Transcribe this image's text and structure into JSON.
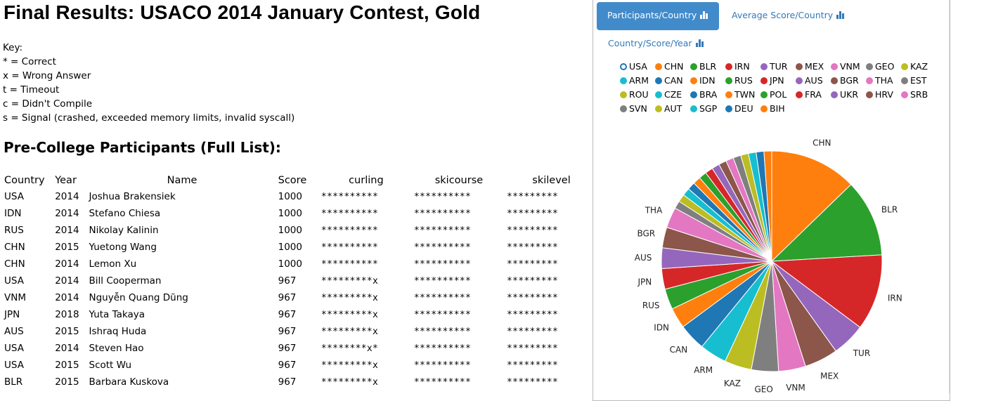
{
  "page_title": "Final Results: USACO 2014 January Contest, Gold",
  "key": {
    "heading": "Key:",
    "items": [
      "* = Correct",
      "x = Wrong Answer",
      "t = Timeout",
      "c = Didn't Compile",
      "s = Signal (crashed, exceeded memory limits, invalid syscall)"
    ]
  },
  "section_heading": "Pre-College Participants (Full List):",
  "table": {
    "headers": [
      "Country",
      "Year",
      "Name",
      "Score",
      "curling",
      "skicourse",
      "skilevel"
    ],
    "rows": [
      [
        "USA",
        "2014",
        "Joshua Brakensiek",
        "1000",
        "**********",
        "**********",
        "*********"
      ],
      [
        "IDN",
        "2014",
        "Stefano Chiesa",
        "1000",
        "**********",
        "**********",
        "*********"
      ],
      [
        "RUS",
        "2014",
        "Nikolay Kalinin",
        "1000",
        "**********",
        "**********",
        "*********"
      ],
      [
        "CHN",
        "2015",
        "Yuetong Wang",
        "1000",
        "**********",
        "**********",
        "*********"
      ],
      [
        "CHN",
        "2014",
        "Lemon Xu",
        "1000",
        "**********",
        "**********",
        "*********"
      ],
      [
        "USA",
        "2014",
        "Bill Cooperman",
        "967",
        "*********x",
        "**********",
        "*********"
      ],
      [
        "VNM",
        "2014",
        "Nguyễn Quang Dũng",
        "967",
        "*********x",
        "**********",
        "*********"
      ],
      [
        "JPN",
        "2018",
        "Yuta Takaya",
        "967",
        "*********x",
        "**********",
        "*********"
      ],
      [
        "AUS",
        "2015",
        "Ishraq Huda",
        "967",
        "*********x",
        "**********",
        "*********"
      ],
      [
        "USA",
        "2014",
        "Steven Hao",
        "967",
        "********x*",
        "**********",
        "*********"
      ],
      [
        "USA",
        "2015",
        "Scott Wu",
        "967",
        "*********x",
        "**********",
        "*********"
      ],
      [
        "BLR",
        "2015",
        "Barbara Kuskova",
        "967",
        "*********x",
        "**********",
        "*********"
      ]
    ]
  },
  "panel": {
    "tabs": [
      {
        "label": "Participants/Country",
        "active": true,
        "icon": "bar-chart-icon"
      },
      {
        "label": "Average Score/Country",
        "active": false,
        "icon": "bar-chart-icon"
      },
      {
        "label": "Country/Score/Year",
        "active": false,
        "icon": "bar-chart-icon"
      }
    ],
    "colors": {
      "active_tab_bg": "#428bca",
      "link": "#337ab7"
    }
  },
  "chart_data": {
    "type": "pie",
    "legend": [
      {
        "name": "USA",
        "color": "#1f77b4",
        "hollow": true
      },
      {
        "name": "CHN",
        "color": "#ff7f0e"
      },
      {
        "name": "BLR",
        "color": "#2ca02c"
      },
      {
        "name": "IRN",
        "color": "#d62728"
      },
      {
        "name": "TUR",
        "color": "#9467bd"
      },
      {
        "name": "MEX",
        "color": "#8c564b"
      },
      {
        "name": "VNM",
        "color": "#e377c2"
      },
      {
        "name": "GEO",
        "color": "#7f7f7f"
      },
      {
        "name": "KAZ",
        "color": "#bcbd22"
      },
      {
        "name": "ARM",
        "color": "#17becf"
      },
      {
        "name": "CAN",
        "color": "#1f77b4"
      },
      {
        "name": "IDN",
        "color": "#ff7f0e"
      },
      {
        "name": "RUS",
        "color": "#2ca02c"
      },
      {
        "name": "JPN",
        "color": "#d62728"
      },
      {
        "name": "AUS",
        "color": "#9467bd"
      },
      {
        "name": "BGR",
        "color": "#8c564b"
      },
      {
        "name": "THA",
        "color": "#e377c2"
      },
      {
        "name": "EST",
        "color": "#7f7f7f"
      },
      {
        "name": "ROU",
        "color": "#bcbd22"
      },
      {
        "name": "CZE",
        "color": "#17becf"
      },
      {
        "name": "BRA",
        "color": "#1f77b4"
      },
      {
        "name": "TWN",
        "color": "#ff7f0e"
      },
      {
        "name": "POL",
        "color": "#2ca02c"
      },
      {
        "name": "FRA",
        "color": "#d62728"
      },
      {
        "name": "UKR",
        "color": "#9467bd"
      },
      {
        "name": "HRV",
        "color": "#8c564b"
      },
      {
        "name": "SRB",
        "color": "#e377c2"
      },
      {
        "name": "SVN",
        "color": "#7f7f7f"
      },
      {
        "name": "AUT",
        "color": "#bcbd22"
      },
      {
        "name": "SGP",
        "color": "#17becf"
      },
      {
        "name": "DEU",
        "color": "#1f77b4"
      },
      {
        "name": "BIH",
        "color": "#ff7f0e"
      }
    ],
    "slices": [
      {
        "name": "CHN",
        "value": 13.5,
        "color": "#ff7f0e",
        "label": "CHN"
      },
      {
        "name": "BLR",
        "value": 12.0,
        "color": "#2ca02c",
        "label": "BLR"
      },
      {
        "name": "IRN",
        "value": 11.8,
        "color": "#d62728",
        "label": "IRN"
      },
      {
        "name": "TUR",
        "value": 5.2,
        "color": "#9467bd",
        "label": "TUR"
      },
      {
        "name": "MEX",
        "value": 5.2,
        "color": "#8c564b",
        "label": "MEX"
      },
      {
        "name": "VNM",
        "value": 4.2,
        "color": "#e377c2",
        "label": "VNM"
      },
      {
        "name": "GEO",
        "value": 4.2,
        "color": "#7f7f7f",
        "label": "GEO"
      },
      {
        "name": "KAZ",
        "value": 4.2,
        "color": "#bcbd22",
        "label": "KAZ"
      },
      {
        "name": "ARM",
        "value": 4.2,
        "color": "#17becf",
        "label": "ARM"
      },
      {
        "name": "CAN",
        "value": 4.2,
        "color": "#1f77b4",
        "label": "CAN"
      },
      {
        "name": "IDN",
        "value": 3.2,
        "color": "#ff7f0e",
        "label": "IDN"
      },
      {
        "name": "RUS",
        "value": 3.2,
        "color": "#2ca02c",
        "label": "RUS"
      },
      {
        "name": "JPN",
        "value": 3.2,
        "color": "#d62728",
        "label": "JPN"
      },
      {
        "name": "AUS",
        "value": 3.2,
        "color": "#9467bd",
        "label": "AUS"
      },
      {
        "name": "BGR",
        "value": 3.2,
        "color": "#8c564b",
        "label": "BGR"
      },
      {
        "name": "THA",
        "value": 3.2,
        "color": "#e377c2",
        "label": "THA"
      },
      {
        "name": "EST",
        "value": 1.2,
        "color": "#7f7f7f",
        "label": ""
      },
      {
        "name": "ROU",
        "value": 1.2,
        "color": "#bcbd22",
        "label": ""
      },
      {
        "name": "CZE",
        "value": 1.2,
        "color": "#17becf",
        "label": ""
      },
      {
        "name": "BRA",
        "value": 1.2,
        "color": "#1f77b4",
        "label": ""
      },
      {
        "name": "TWN",
        "value": 1.2,
        "color": "#ff7f0e",
        "label": ""
      },
      {
        "name": "POL",
        "value": 1.2,
        "color": "#2ca02c",
        "label": ""
      },
      {
        "name": "FRA",
        "value": 1.2,
        "color": "#d62728",
        "label": ""
      },
      {
        "name": "UKR",
        "value": 1.2,
        "color": "#9467bd",
        "label": ""
      },
      {
        "name": "HRV",
        "value": 1.2,
        "color": "#8c564b",
        "label": ""
      },
      {
        "name": "SRB",
        "value": 1.2,
        "color": "#e377c2",
        "label": ""
      },
      {
        "name": "SVN",
        "value": 1.2,
        "color": "#7f7f7f",
        "label": ""
      },
      {
        "name": "AUT",
        "value": 1.2,
        "color": "#bcbd22",
        "label": ""
      },
      {
        "name": "SGP",
        "value": 1.2,
        "color": "#17becf",
        "label": ""
      },
      {
        "name": "DEU",
        "value": 1.2,
        "color": "#1f77b4",
        "label": ""
      },
      {
        "name": "BIH",
        "value": 1.2,
        "color": "#ff7f0e",
        "label": ""
      }
    ]
  }
}
